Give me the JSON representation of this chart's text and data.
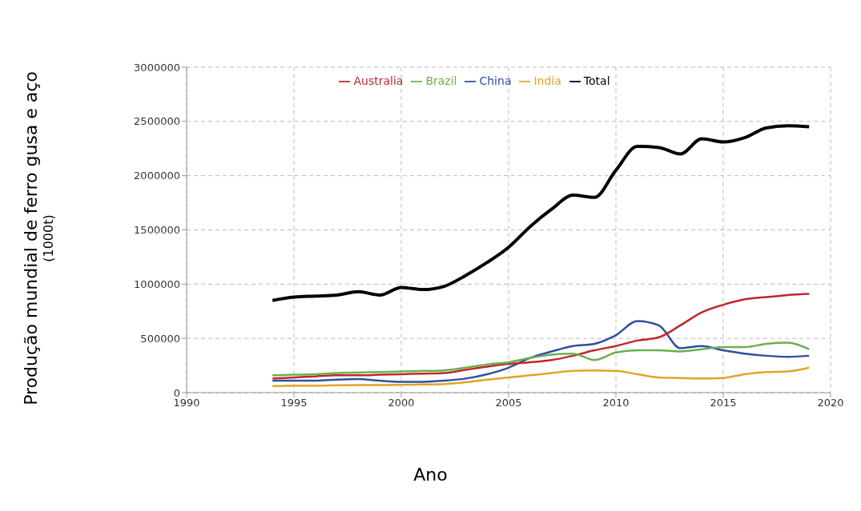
{
  "chart_data": {
    "type": "line",
    "xlabel": "Ano",
    "ylabel": "Produção mundial de ferro gusa e aço\n(1000t)",
    "x": [
      1994,
      1995,
      1996,
      1997,
      1998,
      1999,
      2000,
      2001,
      2002,
      2003,
      2004,
      2005,
      2006,
      2007,
      2008,
      2009,
      2010,
      2011,
      2012,
      2013,
      2014,
      2015,
      2016,
      2017,
      2018,
      2019
    ],
    "series": [
      {
        "name": "China",
        "color": "#2e4fa3",
        "values": [
          110000,
          110000,
          110000,
          120000,
          125000,
          110000,
          100000,
          100000,
          110000,
          130000,
          170000,
          230000,
          320000,
          380000,
          430000,
          450000,
          530000,
          660000,
          620000,
          410000,
          430000,
          390000,
          360000,
          340000,
          330000,
          340000
        ]
      },
      {
        "name": "Australia",
        "color": "#c0272d",
        "values": [
          130000,
          140000,
          150000,
          160000,
          160000,
          165000,
          170000,
          175000,
          180000,
          210000,
          240000,
          265000,
          280000,
          300000,
          340000,
          390000,
          430000,
          480000,
          510000,
          620000,
          740000,
          810000,
          860000,
          880000,
          900000,
          910000
        ]
      },
      {
        "name": "Brazil",
        "color": "#6ab04c",
        "values": [
          160000,
          165000,
          170000,
          180000,
          185000,
          190000,
          195000,
          200000,
          205000,
          230000,
          260000,
          280000,
          320000,
          350000,
          360000,
          300000,
          370000,
          390000,
          390000,
          380000,
          400000,
          420000,
          420000,
          450000,
          460000,
          400000
        ]
      },
      {
        "name": "India",
        "color": "#e0a526",
        "values": [
          60000,
          65000,
          65000,
          68000,
          70000,
          70000,
          72000,
          75000,
          80000,
          95000,
          120000,
          140000,
          160000,
          180000,
          200000,
          205000,
          200000,
          170000,
          140000,
          135000,
          130000,
          135000,
          170000,
          190000,
          195000,
          230000
        ]
      },
      {
        "name": "Total",
        "color": "#000000",
        "values": [
          850000,
          880000,
          890000,
          900000,
          930000,
          900000,
          970000,
          950000,
          980000,
          1080000,
          1200000,
          1340000,
          1530000,
          1690000,
          1820000,
          1800000,
          2050000,
          2270000,
          2260000,
          2200000,
          2340000,
          2310000,
          2350000,
          2440000,
          2460000,
          2450000
        ]
      }
    ],
    "xlim": [
      1990,
      2020
    ],
    "xticks": [
      1990,
      1995,
      2000,
      2005,
      2010,
      2015,
      2020
    ],
    "ylim": [
      0,
      3000000
    ],
    "yticks": [
      0,
      500000,
      1000000,
      1500000,
      2000000,
      2500000,
      3000000
    ],
    "grid": true,
    "legend": "top",
    "marker": "none",
    "line_style": "solid"
  }
}
